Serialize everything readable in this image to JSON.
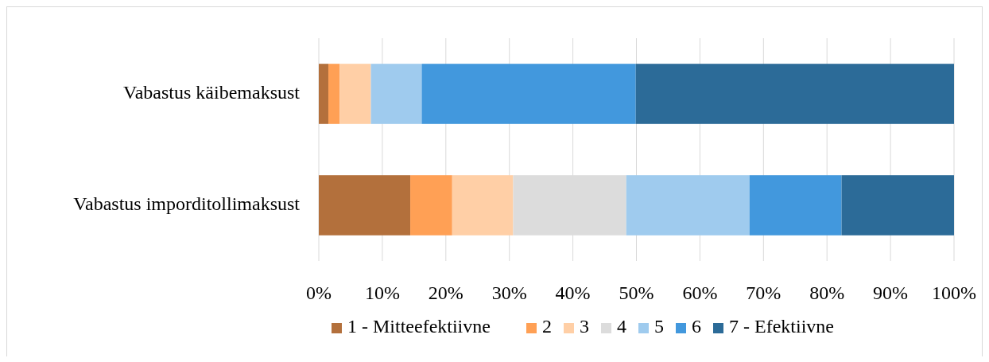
{
  "chart_data": {
    "type": "bar",
    "orientation": "horizontal",
    "stacked": true,
    "categories": [
      "Vabastus käibemaksust",
      "Vabastus imporditollimaksust"
    ],
    "series": [
      {
        "name": "1 - Mitteefektiivne",
        "color": "#b3703c",
        "values": [
          1.5,
          14.4
        ]
      },
      {
        "name": "2",
        "color": "#ffa055",
        "values": [
          1.8,
          6.6
        ]
      },
      {
        "name": "3",
        "color": "#ffcfa6",
        "values": [
          4.9,
          9.6
        ]
      },
      {
        "name": "4",
        "color": "#dcdcdc",
        "values": [
          0,
          17.8
        ]
      },
      {
        "name": "5",
        "color": "#9fcbee",
        "values": [
          8.0,
          19.4
        ]
      },
      {
        "name": "6",
        "color": "#4298dd",
        "values": [
          33.7,
          14.5
        ]
      },
      {
        "name": "7 - Efektiivne",
        "color": "#2c6b98",
        "values": [
          50.1,
          17.7
        ]
      }
    ],
    "xlim": [
      0,
      100
    ],
    "xticks": [
      {
        "value": 0,
        "label": "0%"
      },
      {
        "value": 10,
        "label": "10%"
      },
      {
        "value": 20,
        "label": "20%"
      },
      {
        "value": 30,
        "label": "30%"
      },
      {
        "value": 40,
        "label": "40%"
      },
      {
        "value": 50,
        "label": "50%"
      },
      {
        "value": 60,
        "label": "60%"
      },
      {
        "value": 70,
        "label": "70%"
      },
      {
        "value": 80,
        "label": "80%"
      },
      {
        "value": 90,
        "label": "90%"
      },
      {
        "value": 100,
        "label": "100%"
      }
    ],
    "grid": "x",
    "legend": "bottom"
  }
}
